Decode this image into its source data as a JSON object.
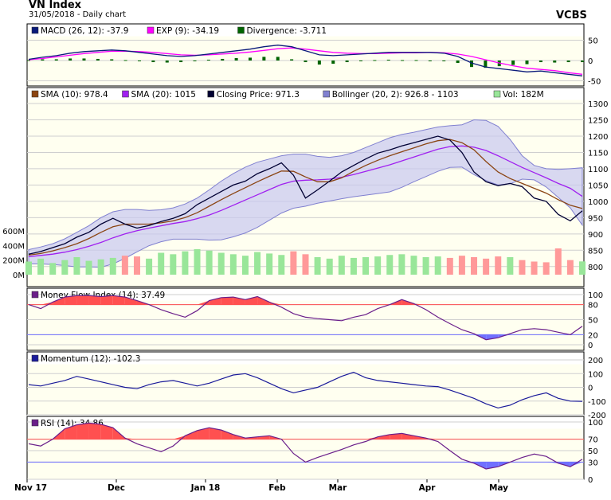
{
  "header": {
    "title": "VN Index",
    "subtitle": "31/05/2018 - Daily chart",
    "brand": "VCBS"
  },
  "colors": {
    "panel_bg": "#fffff0",
    "grid": "#cfcfcf",
    "macd": "#0a1a7a",
    "signal": "#ff00ff",
    "divergence": "#006400",
    "sma10": "#8b4513",
    "sma20": "#a020f0",
    "close": "#000033",
    "bollinger_fill": "#c8c8f0",
    "bollinger_line": "#8080d0",
    "vol_up": "#99e699",
    "vol_down": "#ff9999",
    "mfi": "#6a1e8a",
    "momentum": "#1a1a9a",
    "rsi": "#6a1e8a",
    "overbought": "#ff5050",
    "oversold": "#7070ff"
  },
  "chart_data": [
    {
      "type": "line",
      "panel": "MACD",
      "legend": [
        {
          "label": "MACD (26, 12): -37.9",
          "color": "#0a1a7a"
        },
        {
          "label": "EXP (9): -34.19",
          "color": "#ff00ff"
        },
        {
          "label": "Divergence: -3.711",
          "color": "#006400"
        }
      ],
      "yticks": [
        "50",
        "0",
        "-50"
      ],
      "ylim": [
        -55,
        55
      ],
      "series": [
        {
          "name": "MACD (26, 12)",
          "values": [
            3,
            8,
            12,
            18,
            22,
            24,
            26,
            24,
            20,
            16,
            12,
            10,
            12,
            16,
            20,
            24,
            28,
            34,
            38,
            34,
            24,
            14,
            12,
            14,
            16,
            18,
            20,
            20,
            20,
            20,
            18,
            10,
            -6,
            -16,
            -20,
            -24,
            -28,
            -26,
            -30,
            -34,
            -38
          ]
        },
        {
          "name": "EXP (9)",
          "values": [
            2,
            5,
            9,
            13,
            17,
            20,
            23,
            23,
            22,
            20,
            17,
            14,
            13,
            14,
            16,
            18,
            21,
            25,
            29,
            31,
            28,
            24,
            20,
            18,
            17,
            17,
            18,
            19,
            19,
            20,
            19,
            16,
            10,
            2,
            -6,
            -13,
            -19,
            -22,
            -25,
            -30,
            -34
          ]
        },
        {
          "name": "Divergence",
          "values": [
            1,
            3,
            3,
            5,
            5,
            4,
            3,
            1,
            -2,
            -4,
            -5,
            -4,
            -1,
            2,
            4,
            6,
            7,
            9,
            9,
            3,
            -4,
            -10,
            -8,
            -4,
            -1,
            1,
            2,
            1,
            1,
            0,
            -1,
            -6,
            -16,
            -18,
            -14,
            -11,
            -9,
            -4,
            -5,
            -4,
            -4
          ]
        }
      ]
    },
    {
      "type": "line",
      "panel": "Price",
      "legend": [
        {
          "label": "SMA (10): 978.4",
          "color": "#8b4513"
        },
        {
          "label": "SMA (20): 1015",
          "color": "#a020f0"
        },
        {
          "label": "Closing Price: 971.3",
          "color": "#000033"
        },
        {
          "label": "Bollinger (20, 2): 926.8 - 1103",
          "color": "#8080d0"
        },
        {
          "label": "Vol: 182M",
          "color": "#99e699"
        }
      ],
      "yticks": [
        "1300",
        "1250",
        "1200",
        "1150",
        "1100",
        "1050",
        "1000",
        "950",
        "900",
        "850",
        "800"
      ],
      "volume_ticks": [
        "600M",
        "400M",
        "200M",
        "0M"
      ],
      "ylim": [
        775,
        1305
      ],
      "series": [
        {
          "name": "Closing Price",
          "values": [
            838,
            846,
            858,
            870,
            890,
            905,
            930,
            948,
            930,
            918,
            926,
            938,
            948,
            962,
            990,
            1010,
            1030,
            1050,
            1062,
            1085,
            1100,
            1118,
            1080,
            1010,
            1035,
            1062,
            1090,
            1110,
            1130,
            1148,
            1158,
            1170,
            1180,
            1190,
            1200,
            1188,
            1150,
            1090,
            1060,
            1048,
            1055,
            1045,
            1010,
            1000,
            960,
            940,
            971
          ]
        },
        {
          "name": "SMA (10)",
          "values": [
            835,
            840,
            848,
            858,
            870,
            886,
            905,
            922,
            930,
            930,
            930,
            934,
            940,
            950,
            965,
            985,
            1005,
            1024,
            1042,
            1060,
            1077,
            1093,
            1092,
            1075,
            1060,
            1060,
            1072,
            1092,
            1110,
            1126,
            1140,
            1152,
            1164,
            1176,
            1186,
            1190,
            1180,
            1158,
            1122,
            1090,
            1070,
            1055,
            1040,
            1025,
            1005,
            988,
            978
          ]
        },
        {
          "name": "SMA (20)",
          "values": [
            830,
            834,
            838,
            844,
            852,
            862,
            874,
            888,
            900,
            910,
            918,
            925,
            932,
            938,
            947,
            958,
            972,
            988,
            1004,
            1020,
            1036,
            1052,
            1062,
            1065,
            1066,
            1068,
            1074,
            1082,
            1092,
            1102,
            1112,
            1124,
            1136,
            1148,
            1160,
            1168,
            1170,
            1166,
            1156,
            1140,
            1122,
            1104,
            1088,
            1072,
            1055,
            1040,
            1015
          ]
        },
        {
          "name": "Bollinger Upper",
          "values": [
            852,
            860,
            870,
            885,
            905,
            925,
            950,
            968,
            975,
            975,
            972,
            974,
            980,
            992,
            1010,
            1035,
            1062,
            1085,
            1105,
            1120,
            1130,
            1140,
            1145,
            1145,
            1138,
            1135,
            1140,
            1150,
            1165,
            1180,
            1195,
            1205,
            1212,
            1220,
            1228,
            1232,
            1235,
            1250,
            1248,
            1230,
            1190,
            1140,
            1110,
            1100,
            1098,
            1100,
            1103
          ]
        },
        {
          "name": "Bollinger Lower",
          "values": [
            808,
            808,
            806,
            803,
            799,
            799,
            798,
            808,
            825,
            845,
            864,
            876,
            884,
            884,
            884,
            881,
            882,
            891,
            903,
            920,
            942,
            964,
            979,
            985,
            994,
            1001,
            1008,
            1014,
            1019,
            1024,
            1029,
            1043,
            1060,
            1076,
            1092,
            1104,
            1105,
            1082,
            1064,
            1050,
            1054,
            1068,
            1066,
            1044,
            1012,
            980,
            927
          ]
        },
        {
          "name": "Volume (M)",
          "values": [
            180,
            220,
            160,
            200,
            240,
            190,
            210,
            230,
            260,
            250,
            220,
            300,
            280,
            320,
            350,
            330,
            300,
            280,
            260,
            310,
            290,
            270,
            320,
            280,
            240,
            220,
            260,
            230,
            240,
            250,
            270,
            280,
            260,
            240,
            250,
            230,
            260,
            240,
            220,
            250,
            240,
            200,
            180,
            170,
            360,
            200,
            182
          ]
        }
      ]
    },
    {
      "type": "line",
      "panel": "Money Flow Index",
      "legend": [
        {
          "label": "Money Flow Index (14): 37.49",
          "color": "#6a1e8a"
        }
      ],
      "yticks": [
        "100",
        "80",
        "50",
        "20",
        "0"
      ],
      "overbought": "80",
      "oversold": "20",
      "ylim": [
        0,
        100
      ],
      "series": [
        {
          "name": "MFI (14)",
          "values": [
            80,
            72,
            85,
            95,
            98,
            98,
            96,
            98,
            95,
            88,
            80,
            70,
            62,
            55,
            68,
            88,
            94,
            95,
            90,
            96,
            85,
            75,
            62,
            55,
            52,
            50,
            48,
            55,
            60,
            72,
            80,
            90,
            82,
            70,
            55,
            42,
            30,
            22,
            10,
            14,
            22,
            30,
            32,
            30,
            25,
            20,
            37
          ]
        }
      ]
    },
    {
      "type": "line",
      "panel": "Momentum",
      "legend": [
        {
          "label": "Momentum (12): -102.3",
          "color": "#1a1a9a"
        }
      ],
      "yticks": [
        "200",
        "100",
        "0",
        "-100",
        "-200"
      ],
      "ylim": [
        -200,
        200
      ],
      "series": [
        {
          "name": "Momentum (12)",
          "values": [
            20,
            10,
            30,
            50,
            80,
            60,
            40,
            20,
            0,
            -10,
            20,
            40,
            50,
            30,
            10,
            30,
            60,
            90,
            100,
            70,
            30,
            -10,
            -40,
            -20,
            0,
            40,
            80,
            110,
            70,
            50,
            40,
            30,
            20,
            10,
            5,
            -20,
            -50,
            -80,
            -120,
            -150,
            -130,
            -90,
            -60,
            -40,
            -80,
            -100,
            -102
          ]
        }
      ]
    },
    {
      "type": "line",
      "panel": "RSI",
      "legend": [
        {
          "label": "RSI (14): 34.86",
          "color": "#6a1e8a"
        }
      ],
      "yticks": [
        "100",
        "70",
        "50",
        "30",
        "0"
      ],
      "overbought": "70",
      "oversold": "30",
      "ylim": [
        0,
        100
      ],
      "x_labels": [
        "Nov 17",
        "Dec",
        "Jan 18",
        "Feb",
        "Mar",
        "Apr",
        "May"
      ],
      "series": [
        {
          "name": "RSI (14)",
          "values": [
            62,
            58,
            70,
            88,
            95,
            98,
            96,
            90,
            72,
            62,
            55,
            48,
            58,
            76,
            85,
            90,
            86,
            78,
            72,
            74,
            76,
            70,
            45,
            30,
            38,
            45,
            52,
            60,
            66,
            74,
            78,
            80,
            76,
            72,
            66,
            50,
            35,
            28,
            18,
            22,
            30,
            38,
            44,
            40,
            28,
            22,
            35
          ]
        }
      ]
    }
  ]
}
